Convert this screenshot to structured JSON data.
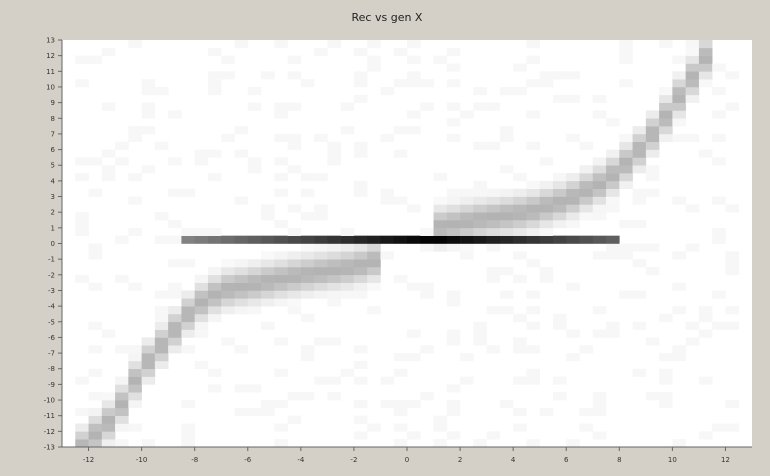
{
  "chart_data": {
    "type": "heatmap",
    "title": "Rec vs gen X",
    "xlabel": "",
    "ylabel": "",
    "xlim": [
      -13,
      13
    ],
    "ylim": [
      -13,
      13
    ],
    "x_ticks": [
      "-12",
      "-10",
      "-8",
      "-6",
      "-4",
      "-2",
      "0",
      "2",
      "4",
      "6",
      "8",
      "10",
      "12"
    ],
    "y_ticks": [
      "-13",
      "-12",
      "-11",
      "-10",
      "-9",
      "-8",
      "-7",
      "-6",
      "-5",
      "-4",
      "-3",
      "-2",
      "-1",
      "0",
      "1",
      "2",
      "3",
      "4",
      "5",
      "6",
      "7",
      "8",
      "9",
      "10",
      "11",
      "12",
      "13"
    ],
    "grid": false,
    "legend": "none",
    "colors": {
      "background": "#d4d0c8",
      "plot": "#ffffff",
      "ink": "#000000"
    },
    "bins": {
      "x_start": -12.5,
      "x_step": 0.5,
      "x_count": 50,
      "y_start": -13,
      "y_step": 0.5,
      "y_count": 52
    },
    "ridges": [
      {
        "name": "central plateau",
        "x_from": -8.25,
        "x_to": 7.75,
        "y": 0.25,
        "peak": 1.0,
        "center": 1.0,
        "falloff": 0.055
      },
      {
        "name": "negative branch",
        "points": [
          [
            -12.25,
            -13.0
          ],
          [
            -11.0,
            -11.0
          ],
          [
            -10.0,
            -8.0
          ],
          [
            -9.0,
            -6.0
          ],
          [
            -8.0,
            -4.0
          ],
          [
            -7.0,
            -3.0
          ],
          [
            -5.5,
            -2.5
          ],
          [
            -4.0,
            -2.0
          ],
          [
            -2.0,
            -1.5
          ],
          [
            -1.0,
            -1.0
          ]
        ],
        "peak": 0.3,
        "spread": 0.75
      },
      {
        "name": "positive branch",
        "points": [
          [
            1.0,
            1.0
          ],
          [
            2.5,
            1.5
          ],
          [
            4.5,
            2.0
          ],
          [
            6.0,
            2.75
          ],
          [
            7.5,
            4.0
          ],
          [
            8.5,
            5.5
          ],
          [
            9.5,
            7.5
          ],
          [
            10.5,
            10.0
          ],
          [
            11.5,
            12.5
          ]
        ],
        "peak": 0.3,
        "spread": 0.75
      }
    ],
    "background_level": 0.03
  }
}
